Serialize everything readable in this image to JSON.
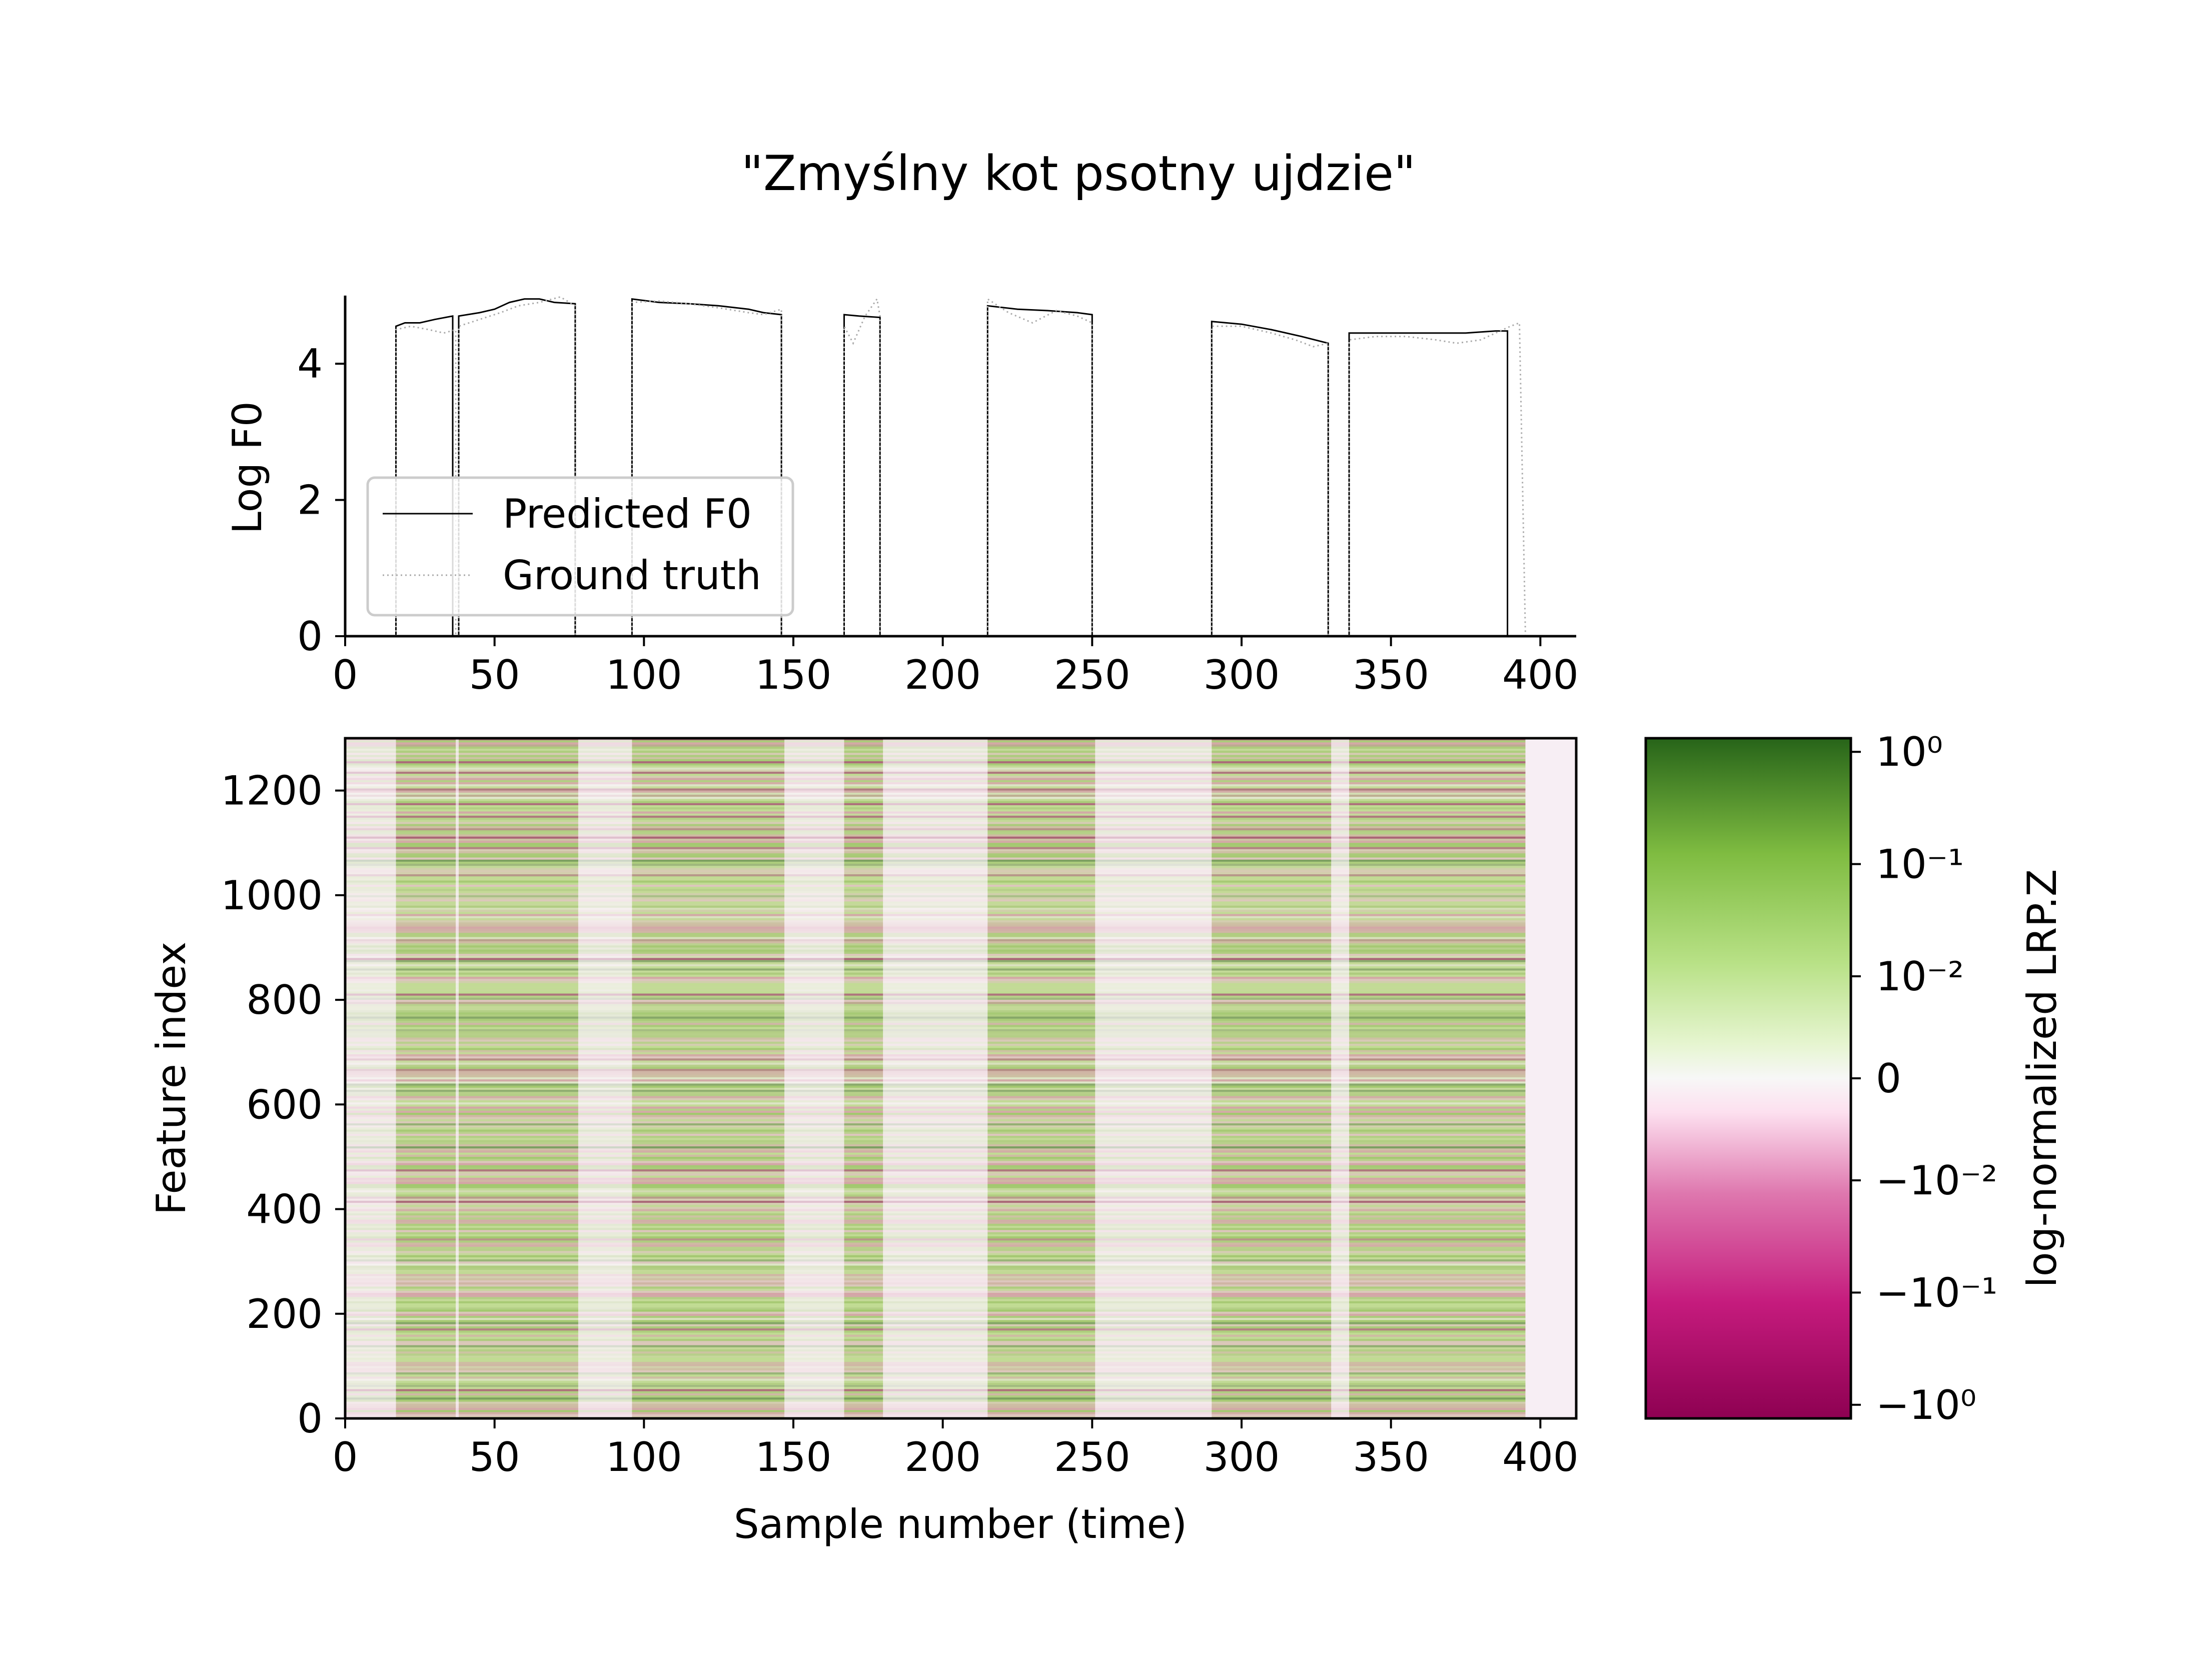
{
  "chart_data": [
    {
      "type": "line",
      "title": "\"Zmyślny kot psotny ujdzie\"",
      "xlabel": "",
      "ylabel": "Log F0",
      "xlim": [
        0,
        412
      ],
      "ylim": [
        0,
        5
      ],
      "xticks": [
        "0",
        "50",
        "100",
        "150",
        "200",
        "250",
        "300",
        "350",
        "400"
      ],
      "yticks": [
        "0",
        "2",
        "4"
      ],
      "grid": false,
      "legend_position": "lower-left",
      "series": [
        {
          "name": "Predicted F0",
          "style": "solid",
          "color": "#000000",
          "segments": [
            [
              [
                17,
                4.55
              ],
              [
                20,
                4.6
              ],
              [
                25,
                4.6
              ],
              [
                30,
                4.65
              ],
              [
                36,
                4.7
              ]
            ],
            [
              [
                38,
                4.7
              ],
              [
                45,
                4.75
              ],
              [
                50,
                4.8
              ],
              [
                55,
                4.9
              ],
              [
                60,
                4.95
              ],
              [
                65,
                4.95
              ],
              [
                70,
                4.9
              ],
              [
                77,
                4.88
              ]
            ],
            [
              [
                96,
                4.95
              ],
              [
                105,
                4.9
              ],
              [
                115,
                4.88
              ],
              [
                125,
                4.85
              ],
              [
                135,
                4.8
              ],
              [
                140,
                4.75
              ],
              [
                146,
                4.72
              ]
            ],
            [
              [
                167,
                4.72
              ],
              [
                172,
                4.7
              ],
              [
                179,
                4.68
              ]
            ],
            [
              [
                215,
                4.85
              ],
              [
                225,
                4.8
              ],
              [
                235,
                4.78
              ],
              [
                245,
                4.75
              ],
              [
                250,
                4.72
              ]
            ],
            [
              [
                290,
                4.62
              ],
              [
                300,
                4.58
              ],
              [
                310,
                4.5
              ],
              [
                320,
                4.4
              ],
              [
                329,
                4.3
              ]
            ],
            [
              [
                336,
                4.45
              ],
              [
                345,
                4.45
              ],
              [
                355,
                4.45
              ],
              [
                365,
                4.45
              ],
              [
                375,
                4.45
              ],
              [
                385,
                4.48
              ],
              [
                389,
                4.48
              ]
            ]
          ]
        },
        {
          "name": "Ground truth",
          "style": "dotted",
          "color": "#aaaaaa",
          "segments": [
            [
              [
                17,
                4.5
              ],
              [
                22,
                4.55
              ],
              [
                28,
                4.5
              ],
              [
                33,
                4.45
              ],
              [
                37,
                4.5
              ]
            ],
            [
              [
                38,
                4.55
              ],
              [
                45,
                4.65
              ],
              [
                52,
                4.75
              ],
              [
                58,
                4.85
              ],
              [
                65,
                4.9
              ],
              [
                72,
                4.98
              ],
              [
                77,
                4.85
              ]
            ],
            [
              [
                96,
                4.9
              ],
              [
                105,
                4.92
              ],
              [
                115,
                4.88
              ],
              [
                125,
                4.82
              ],
              [
                135,
                4.75
              ],
              [
                140,
                4.72
              ],
              [
                146,
                4.8
              ]
            ],
            [
              [
                167,
                4.55
              ],
              [
                170,
                4.3
              ],
              [
                174,
                4.7
              ],
              [
                178,
                4.95
              ],
              [
                179,
                4.7
              ]
            ],
            [
              [
                215,
                4.95
              ],
              [
                222,
                4.75
              ],
              [
                230,
                4.6
              ],
              [
                238,
                4.78
              ],
              [
                245,
                4.7
              ],
              [
                250,
                4.6
              ]
            ],
            [
              [
                290,
                4.55
              ],
              [
                300,
                4.55
              ],
              [
                310,
                4.45
              ],
              [
                318,
                4.35
              ],
              [
                324,
                4.25
              ],
              [
                329,
                4.3
              ]
            ],
            [
              [
                336,
                4.35
              ],
              [
                345,
                4.4
              ],
              [
                355,
                4.4
              ],
              [
                365,
                4.35
              ],
              [
                372,
                4.3
              ],
              [
                380,
                4.35
              ],
              [
                390,
                4.55
              ],
              [
                393,
                4.6
              ],
              [
                395,
                0
              ]
            ]
          ]
        }
      ]
    },
    {
      "type": "heatmap",
      "title": "",
      "xlabel": "Sample number (time)",
      "ylabel": "Feature index",
      "xlim": [
        0,
        412
      ],
      "ylim": [
        0,
        1300
      ],
      "xticks": [
        "0",
        "50",
        "100",
        "150",
        "200",
        "250",
        "300",
        "350",
        "400"
      ],
      "yticks": [
        "0",
        "200",
        "400",
        "600",
        "800",
        "1000",
        "1200"
      ],
      "grid": false,
      "colormap": "PiYG",
      "voiced_segments": [
        [
          17,
          37
        ],
        [
          38,
          78
        ],
        [
          96,
          147
        ],
        [
          167,
          180
        ],
        [
          215,
          251
        ],
        [
          290,
          330
        ],
        [
          336,
          395
        ]
      ],
      "data_extent": [
        0,
        395
      ],
      "colorbar": {
        "label": "log-normalized LRP.Z",
        "ticks": [
          "10⁰",
          "10⁻¹",
          "10⁻²",
          "0",
          "−10⁻²",
          "−10⁻¹",
          "−10⁰"
        ],
        "tick_values": [
          1,
          0.1,
          0.01,
          0,
          -0.01,
          -0.1,
          -1
        ]
      }
    }
  ],
  "legend": {
    "predicted_label": "Predicted F0",
    "ground_truth_label": "Ground truth"
  },
  "colors": {
    "green_dark": "#276419",
    "green_mid": "#7fbc41",
    "green_light": "#b8e186",
    "neutral": "#f7f7f7",
    "pink_light": "#f1b6da",
    "pink_mid": "#de77ae",
    "magenta_dark": "#8e0152"
  }
}
